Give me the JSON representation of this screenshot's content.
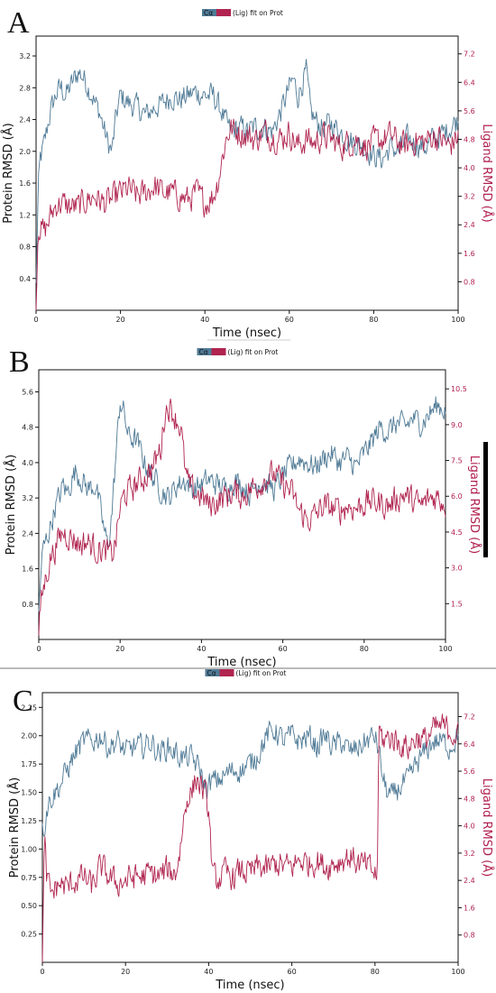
{
  "colors": {
    "protein": "#4f7a96",
    "ligand": "#b0244f"
  },
  "chart_data": [
    {
      "type": "line",
      "panel_label": "A",
      "legend_prefix": "Cα",
      "legend_text": "(Lig) fit on Prot",
      "xlabel": "Time (nsec)",
      "ylabel": "Protein RMSD (Å)",
      "y2label": "Ligand RMSD (Å)",
      "xlim": [
        0,
        100
      ],
      "ylim": [
        0,
        3.45
      ],
      "y2lim": [
        0,
        7.7
      ],
      "x_ticks": [
        0,
        20,
        40,
        60,
        80,
        100
      ],
      "y_ticks": [
        "0.4",
        "0.8",
        "1.2",
        "1.6",
        "2.0",
        "2.4",
        "2.8",
        "3.2"
      ],
      "y2_ticks": [
        "0.8",
        "1.6",
        "2.4",
        "3.2",
        "4.0",
        "4.8",
        "5.6",
        "6.4",
        "7.2"
      ],
      "series": [
        {
          "axis": "left",
          "x": [
            0,
            0.5,
            1,
            2,
            3,
            4,
            5,
            6,
            7,
            8,
            9,
            10,
            11,
            12,
            13,
            14,
            15,
            16,
            17,
            18,
            19,
            20,
            22,
            24,
            26,
            28,
            30,
            32,
            34,
            36,
            38,
            40,
            42,
            43,
            44,
            45,
            46,
            48,
            50,
            52,
            54,
            56,
            58,
            60,
            61,
            62,
            63,
            64,
            65,
            66,
            68,
            70,
            72,
            74,
            76,
            78,
            80,
            82,
            84,
            86,
            88,
            90,
            92,
            94,
            96,
            98,
            100
          ],
          "y": [
            0.3,
            1.5,
            1.9,
            2.1,
            2.4,
            2.6,
            2.75,
            2.8,
            2.7,
            2.8,
            2.9,
            3.0,
            2.95,
            2.85,
            2.75,
            2.6,
            2.5,
            2.3,
            2.1,
            2.0,
            2.45,
            2.7,
            2.6,
            2.55,
            2.45,
            2.55,
            2.6,
            2.7,
            2.65,
            2.7,
            2.75,
            2.7,
            2.7,
            2.6,
            2.5,
            2.35,
            2.25,
            2.3,
            2.25,
            2.3,
            2.3,
            2.25,
            2.5,
            2.8,
            2.9,
            2.7,
            2.85,
            3.0,
            2.5,
            2.4,
            2.3,
            2.35,
            2.25,
            2.15,
            2.1,
            2.05,
            1.95,
            1.9,
            2.05,
            2.0,
            2.15,
            2.1,
            2.05,
            2.15,
            2.2,
            2.3,
            2.4
          ]
        },
        {
          "axis": "right",
          "x": [
            0,
            0.5,
            1,
            2,
            3,
            4,
            5,
            6,
            8,
            10,
            12,
            14,
            16,
            18,
            20,
            22,
            24,
            26,
            28,
            30,
            32,
            34,
            36,
            38,
            40,
            42,
            43,
            44,
            45,
            46,
            48,
            50,
            52,
            54,
            56,
            58,
            60,
            62,
            64,
            66,
            68,
            70,
            72,
            74,
            76,
            78,
            80,
            82,
            84,
            86,
            88,
            90,
            92,
            94,
            96,
            98,
            100
          ],
          "y": [
            0.1,
            2.5,
            2.3,
            2.2,
            2.5,
            2.8,
            3.0,
            3.0,
            2.9,
            2.9,
            3.1,
            3.2,
            3.0,
            3.1,
            3.3,
            3.4,
            3.2,
            3.3,
            3.5,
            3.3,
            3.3,
            3.2,
            3.1,
            3.3,
            3.0,
            3.2,
            3.6,
            4.2,
            4.8,
            5.1,
            5.0,
            4.9,
            4.8,
            5.0,
            4.9,
            4.8,
            5.0,
            4.6,
            4.8,
            4.7,
            4.9,
            4.8,
            4.6,
            4.7,
            4.8,
            4.6,
            4.7,
            4.8,
            4.9,
            4.7,
            4.6,
            4.8,
            4.7,
            4.9,
            4.8,
            4.6,
            4.9
          ]
        }
      ]
    },
    {
      "type": "line",
      "panel_label": "B",
      "legend_prefix": "Cα",
      "legend_text": "(Lig) fit on Prot",
      "xlabel": "Time (nsec)",
      "ylabel": "Protein RMSD (Å)",
      "y2label": "Ligand RMSD (Å)",
      "xlim": [
        0,
        100
      ],
      "ylim": [
        0,
        6.1
      ],
      "y2lim": [
        0,
        11.3
      ],
      "x_ticks": [
        0,
        20,
        40,
        60,
        80,
        100
      ],
      "y_ticks": [
        "0.8",
        "1.6",
        "2.4",
        "3.2",
        "4.0",
        "4.8",
        "5.6"
      ],
      "y2_ticks": [
        "1.5",
        "3.0",
        "4.5",
        "6.0",
        "7.5",
        "9.0",
        "10.5"
      ],
      "series": [
        {
          "axis": "left",
          "x": [
            0,
            0.5,
            1,
            2,
            3,
            4,
            5,
            6,
            7,
            8,
            9,
            10,
            12,
            14,
            16,
            17,
            18,
            19,
            20,
            21,
            22,
            24,
            26,
            28,
            30,
            32,
            34,
            36,
            38,
            40,
            42,
            44,
            46,
            48,
            50,
            52,
            54,
            56,
            58,
            60,
            62,
            64,
            66,
            68,
            70,
            72,
            74,
            76,
            78,
            80,
            82,
            84,
            86,
            88,
            90,
            92,
            94,
            96,
            98,
            100
          ],
          "y": [
            0.6,
            1.5,
            2.0,
            2.3,
            2.6,
            3.0,
            3.2,
            3.5,
            3.3,
            3.6,
            3.8,
            3.7,
            3.4,
            3.5,
            2.5,
            2.1,
            2.9,
            4.2,
            5.4,
            5.1,
            4.6,
            4.5,
            4.0,
            3.7,
            3.4,
            3.2,
            3.5,
            3.6,
            3.4,
            3.5,
            3.6,
            3.5,
            3.4,
            3.6,
            3.5,
            3.3,
            3.6,
            3.5,
            3.4,
            3.7,
            3.9,
            4.1,
            4.0,
            3.9,
            4.1,
            4.2,
            4.0,
            4.1,
            3.9,
            4.2,
            4.5,
            4.8,
            4.7,
            4.9,
            4.8,
            5.0,
            4.9,
            5.1,
            5.3,
            5.2
          ]
        },
        {
          "axis": "right",
          "x": [
            0,
            0.5,
            1,
            2,
            3,
            4,
            5,
            6,
            8,
            10,
            12,
            14,
            16,
            18,
            19,
            20,
            21,
            22,
            24,
            26,
            28,
            30,
            31,
            32,
            33,
            34,
            35,
            36,
            37,
            38,
            40,
            42,
            44,
            46,
            48,
            50,
            52,
            54,
            56,
            58,
            60,
            62,
            64,
            66,
            68,
            70,
            72,
            74,
            76,
            78,
            80,
            82,
            84,
            86,
            88,
            90,
            92,
            94,
            96,
            98,
            100
          ],
          "y": [
            0.1,
            1.5,
            2.0,
            2.8,
            3.5,
            3.8,
            4.2,
            4.5,
            4.3,
            4.0,
            4.1,
            3.8,
            3.7,
            3.5,
            4.2,
            5.5,
            6.0,
            6.2,
            6.5,
            6.8,
            7.2,
            8.0,
            9.5,
            9.8,
            9.5,
            9.2,
            8.8,
            7.0,
            6.4,
            6.2,
            6.0,
            5.6,
            5.8,
            6.0,
            6.2,
            6.0,
            6.3,
            6.5,
            6.8,
            6.9,
            6.5,
            6.2,
            5.4,
            5.0,
            5.2,
            5.6,
            5.5,
            5.4,
            5.6,
            5.5,
            5.7,
            5.8,
            5.7,
            5.6,
            5.9,
            6.1,
            5.8,
            5.6,
            5.9,
            6.0,
            5.7
          ]
        }
      ]
    },
    {
      "type": "line",
      "panel_label": "C",
      "legend_prefix": "Cα",
      "legend_text": "(Lig) fit on Prot",
      "xlabel": "Time (nsec)",
      "ylabel": "Protein RMSD (Å)",
      "y2label": "Ligand RMSD (Å)",
      "xlim": [
        0,
        100
      ],
      "ylim": [
        0,
        2.38
      ],
      "y2lim": [
        0,
        7.9
      ],
      "x_ticks": [
        0,
        20,
        40,
        60,
        80,
        100
      ],
      "y_ticks": [
        "0.25",
        "0.50",
        "0.75",
        "1.00",
        "1.25",
        "1.50",
        "1.75",
        "2.00",
        "2.25"
      ],
      "y2_ticks": [
        "0.8",
        "1.6",
        "2.4",
        "3.2",
        "4.0",
        "4.8",
        "5.6",
        "6.4",
        "7.2"
      ],
      "series": [
        {
          "axis": "left",
          "x": [
            0,
            0.5,
            1,
            2,
            4,
            6,
            8,
            10,
            12,
            14,
            16,
            18,
            20,
            22,
            24,
            26,
            28,
            30,
            32,
            34,
            36,
            37,
            38,
            39,
            40,
            41,
            42,
            44,
            46,
            48,
            50,
            52,
            54,
            56,
            58,
            60,
            62,
            64,
            66,
            68,
            70,
            72,
            74,
            76,
            78,
            80,
            81,
            82,
            83,
            84,
            86,
            88,
            90,
            92,
            94,
            96,
            98,
            100
          ],
          "y": [
            1.15,
            1.2,
            1.35,
            1.45,
            1.55,
            1.7,
            1.85,
            1.95,
            1.95,
            2.0,
            1.9,
            1.95,
            1.85,
            1.9,
            1.9,
            1.95,
            1.85,
            1.9,
            1.85,
            1.8,
            1.8,
            1.75,
            1.7,
            1.55,
            1.55,
            1.6,
            1.6,
            1.65,
            1.7,
            1.7,
            1.75,
            1.85,
            2.0,
            2.05,
            1.95,
            2.0,
            1.95,
            2.0,
            1.9,
            2.0,
            1.9,
            1.95,
            1.85,
            1.9,
            1.95,
            2.0,
            1.85,
            1.6,
            1.5,
            1.45,
            1.55,
            1.6,
            1.75,
            1.85,
            1.95,
            1.95,
            1.9,
            2.0
          ]
        },
        {
          "axis": "right",
          "x": [
            0,
            0.5,
            1,
            2,
            4,
            6,
            8,
            10,
            12,
            14,
            16,
            18,
            20,
            22,
            24,
            26,
            28,
            30,
            32,
            33,
            34,
            35,
            36,
            37,
            38,
            39,
            40,
            41,
            42,
            44,
            46,
            48,
            50,
            52,
            54,
            56,
            58,
            60,
            62,
            64,
            66,
            68,
            70,
            72,
            74,
            76,
            78,
            80,
            80.5,
            81,
            82,
            84,
            86,
            88,
            90,
            92,
            94,
            96,
            98,
            100
          ],
          "y": [
            0.2,
            3.6,
            2.5,
            2.0,
            2.3,
            2.2,
            2.4,
            2.5,
            2.2,
            2.8,
            2.5,
            2.3,
            2.4,
            2.5,
            2.5,
            2.6,
            2.5,
            2.7,
            2.6,
            3.2,
            4.2,
            4.9,
            5.0,
            5.4,
            5.2,
            5.0,
            4.4,
            2.5,
            2.4,
            2.6,
            2.5,
            2.7,
            2.6,
            2.8,
            2.7,
            2.9,
            2.8,
            2.8,
            3.0,
            2.9,
            3.0,
            2.8,
            2.9,
            3.0,
            3.1,
            2.9,
            2.8,
            2.6,
            2.4,
            6.8,
            6.5,
            6.6,
            6.4,
            6.3,
            6.6,
            6.5,
            6.8,
            6.9,
            6.8,
            6.6
          ]
        }
      ]
    }
  ]
}
